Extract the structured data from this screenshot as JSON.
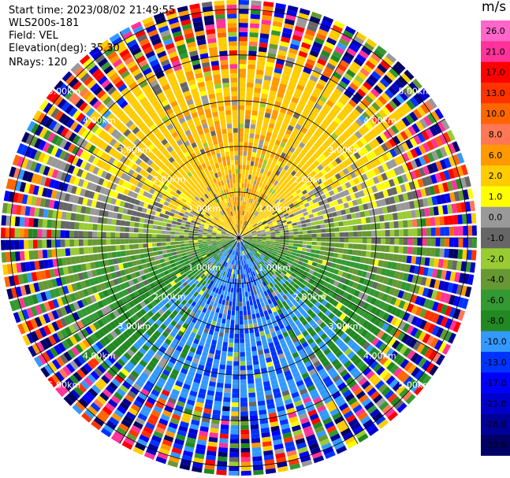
{
  "header": {
    "start_time": "Start time: 2023/08/02 21:49:55",
    "instrument": "WLS200s-181",
    "field": "Field: VEL",
    "elevation": "Elevation(deg): 35.30",
    "nrays": "NRays: 120"
  },
  "chart_data": {
    "type": "heatmap",
    "projection": "polar-ppi",
    "field": "VEL",
    "units": "m/s",
    "nrays": 120,
    "range_rings_km": [
      1.0,
      2.0,
      3.0,
      4.0,
      5.0
    ],
    "ring_labels": [
      "1.00km",
      "2.00km",
      "3.00km",
      "4.00km",
      "5.00km"
    ],
    "colorbar": {
      "ticks": [
        26.0,
        21.0,
        17.0,
        13.0,
        10.0,
        8.0,
        6.0,
        2.0,
        1.0,
        0.0,
        -1.0,
        -2.0,
        -4.0,
        -6.0,
        -8.0,
        -10.0,
        -13.0,
        -17.0,
        -21.0,
        -26.0,
        -30.0
      ],
      "tick_labels": [
        "26.0",
        "21.0",
        "17.0",
        "13.0",
        "10.0",
        "8.0",
        "6.0",
        "2.0",
        "1.0",
        "0.0",
        "-1.0",
        "-2.0",
        "-4.0",
        "-6.0",
        "-8.0",
        "-10.0",
        "-13.0",
        "-17.0",
        "-21.0",
        "-26.0",
        "-30.0"
      ],
      "colors": [
        "#ff66cc",
        "#ff3399",
        "#ff0000",
        "#ff3300",
        "#ff6600",
        "#ff7755",
        "#ff9900",
        "#ffcc00",
        "#ffff00",
        "#999999",
        "#666666",
        "#99cc33",
        "#669933",
        "#339933",
        "#228822",
        "#3399ff",
        "#0033ff",
        "#0000ff",
        "#0000cc",
        "#000099",
        "#000066"
      ]
    }
  },
  "colorbar_unit": "m/s"
}
